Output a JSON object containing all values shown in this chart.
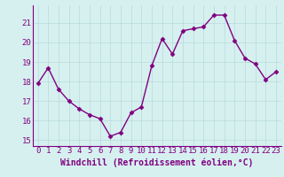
{
  "x": [
    0,
    1,
    2,
    3,
    4,
    5,
    6,
    7,
    8,
    9,
    10,
    11,
    12,
    13,
    14,
    15,
    16,
    17,
    18,
    19,
    20,
    21,
    22,
    23
  ],
  "y": [
    17.9,
    18.7,
    17.6,
    17.0,
    16.6,
    16.3,
    16.1,
    15.2,
    15.4,
    16.4,
    16.7,
    18.8,
    20.2,
    19.4,
    20.6,
    20.7,
    20.8,
    21.4,
    21.4,
    20.1,
    19.2,
    18.9,
    18.1,
    18.5
  ],
  "line_color": "#800080",
  "marker": "D",
  "marker_size": 2.5,
  "line_width": 1.0,
  "bg_color": "#d6f0f0",
  "grid_color": "#b8dada",
  "xlabel": "Windchill (Refroidissement éolien,°C)",
  "xlabel_fontsize": 7,
  "tick_fontsize": 6.5,
  "ylim": [
    14.7,
    21.9
  ],
  "xlim": [
    -0.5,
    23.5
  ],
  "yticks": [
    15,
    16,
    17,
    18,
    19,
    20,
    21
  ],
  "xticks": [
    0,
    1,
    2,
    3,
    4,
    5,
    6,
    7,
    8,
    9,
    10,
    11,
    12,
    13,
    14,
    15,
    16,
    17,
    18,
    19,
    20,
    21,
    22,
    23
  ]
}
